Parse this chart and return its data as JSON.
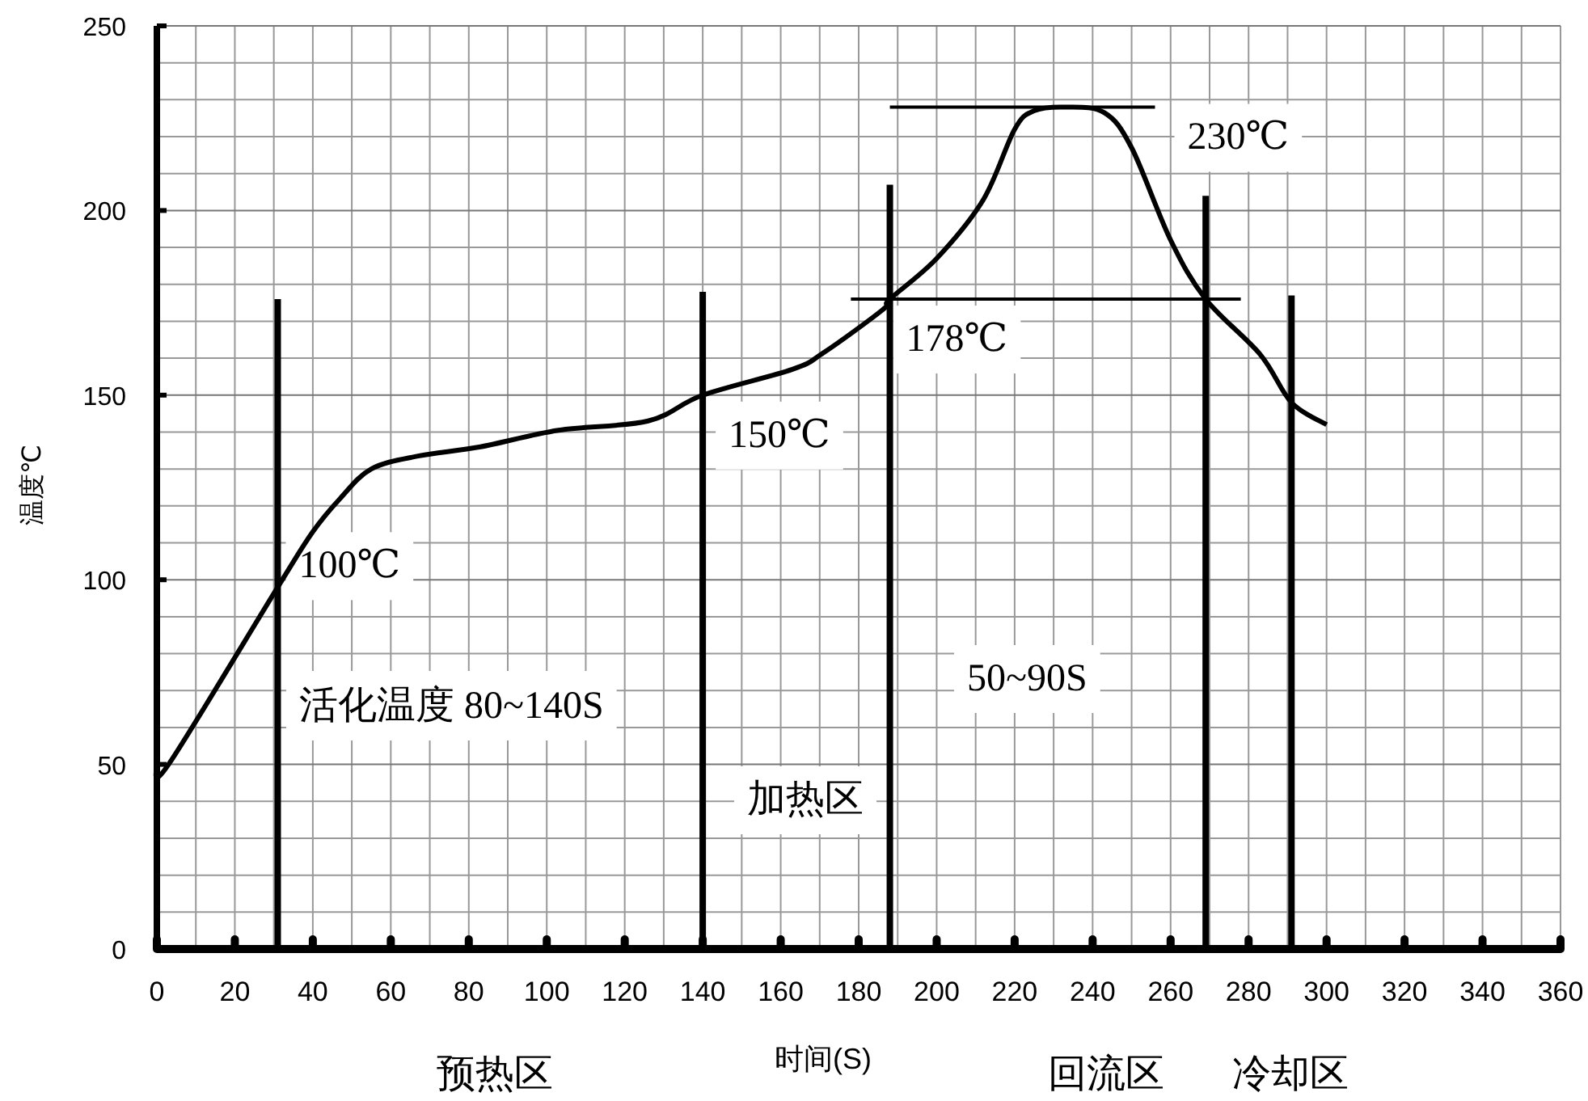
{
  "chart_data": {
    "type": "line",
    "xlabel": "时间(S)",
    "ylabel": "温度℃",
    "xlim": [
      0,
      360
    ],
    "ylim": [
      0,
      250
    ],
    "xticks": [
      0,
      20,
      40,
      60,
      80,
      100,
      120,
      140,
      160,
      180,
      200,
      220,
      240,
      260,
      280,
      300,
      320,
      340,
      360
    ],
    "yticks": [
      0,
      50,
      100,
      150,
      200,
      250
    ],
    "grid": true,
    "series": [
      {
        "color": "#000000",
        "x": [
          0,
          3,
          31,
          40,
          47,
          55,
          67,
          83,
          103,
          126,
          140,
          163,
          171,
          186,
          188,
          200,
          212,
          220,
          225,
          233,
          243,
          250,
          260,
          269,
          283,
          291,
          300
        ],
        "values": [
          50,
          50,
          98,
          113,
          122,
          130,
          133.5,
          136,
          140.5,
          143,
          150,
          157,
          161.5,
          173,
          176,
          187,
          203,
          222,
          227,
          228,
          226.5,
          217,
          192,
          176,
          161,
          148,
          142
        ]
      },
      {
        "color": "#000000",
        "x": [
          31,
          31
        ],
        "values": [
          0,
          176
        ]
      },
      {
        "color": "#000000",
        "x": [
          140,
          140
        ],
        "values": [
          0,
          178
        ]
      },
      {
        "color": "#000000",
        "x": [
          188,
          188
        ],
        "values": [
          0,
          207
        ]
      },
      {
        "color": "#000000",
        "x": [
          269,
          269
        ],
        "values": [
          0,
          204
        ]
      },
      {
        "color": "#000000",
        "x": [
          291,
          291
        ],
        "values": [
          0,
          177
        ]
      },
      {
        "color": "#000000",
        "x": [
          188,
          256
        ],
        "values": [
          228,
          228
        ]
      },
      {
        "color": "#000000",
        "x": [
          178,
          278
        ],
        "values": [
          176,
          176
        ]
      }
    ],
    "annotations": [
      {
        "text": "100℃",
        "x": 31,
        "y": 98
      },
      {
        "text": "150℃",
        "x": 140,
        "y": 150
      },
      {
        "text": "178℃",
        "x": 188,
        "y": 176
      },
      {
        "text": "230℃",
        "x": 256,
        "y": 228
      },
      "活化温度 80~140S",
      "加热区",
      "50~90S",
      "预热区",
      "回流区",
      "冷却区"
    ]
  }
}
